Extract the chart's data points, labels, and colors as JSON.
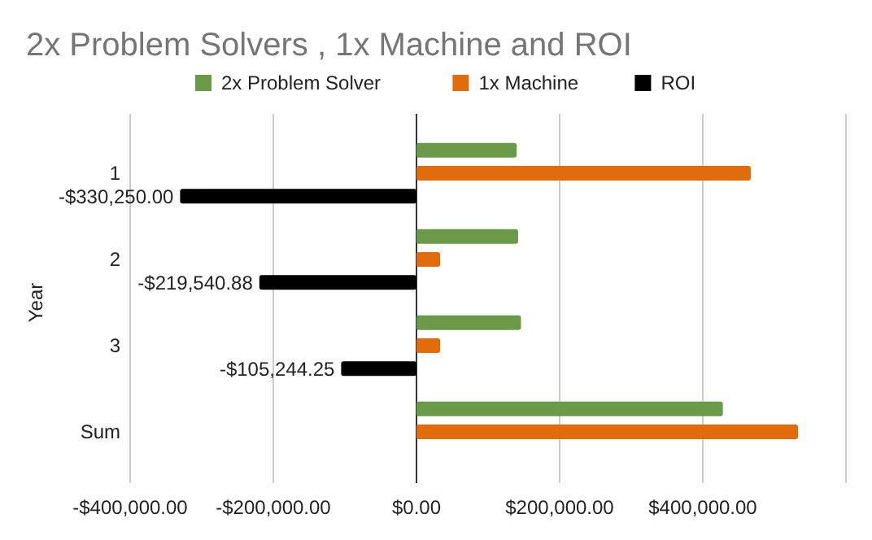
{
  "chart_data": {
    "type": "bar",
    "orientation": "horizontal",
    "title": "2x Problem Solvers , 1x Machine  and ROI",
    "ylabel": "Year",
    "categories": [
      "1",
      "2",
      "3",
      "Sum"
    ],
    "series": [
      {
        "name": "2x Problem Solver",
        "color": "#6a9a48",
        "values": [
          140000,
          142000,
          146000,
          428000
        ]
      },
      {
        "name": "1x Machine",
        "color": "#e06c0c",
        "values": [
          467000,
          33000,
          33000,
          533000
        ]
      },
      {
        "name": "ROI",
        "color": "#000000",
        "values": [
          -330250,
          -219540.88,
          -105244.25,
          null
        ],
        "value_labels": [
          "-$330,250.00",
          "-$219,540.88",
          "-$105,244.25",
          null
        ]
      }
    ],
    "xlim": [
      -400000,
      600000
    ],
    "xticks": [
      {
        "value": -400000,
        "label": "-$400,000.00"
      },
      {
        "value": -200000,
        "label": "-$200,000.00"
      },
      {
        "value": 0,
        "label": "$0.00"
      },
      {
        "value": 200000,
        "label": "$200,000.00"
      },
      {
        "value": 400000,
        "label": "$400,000.00"
      },
      {
        "value": 600000,
        "label": null
      }
    ],
    "grid": "x",
    "legend": "top"
  }
}
